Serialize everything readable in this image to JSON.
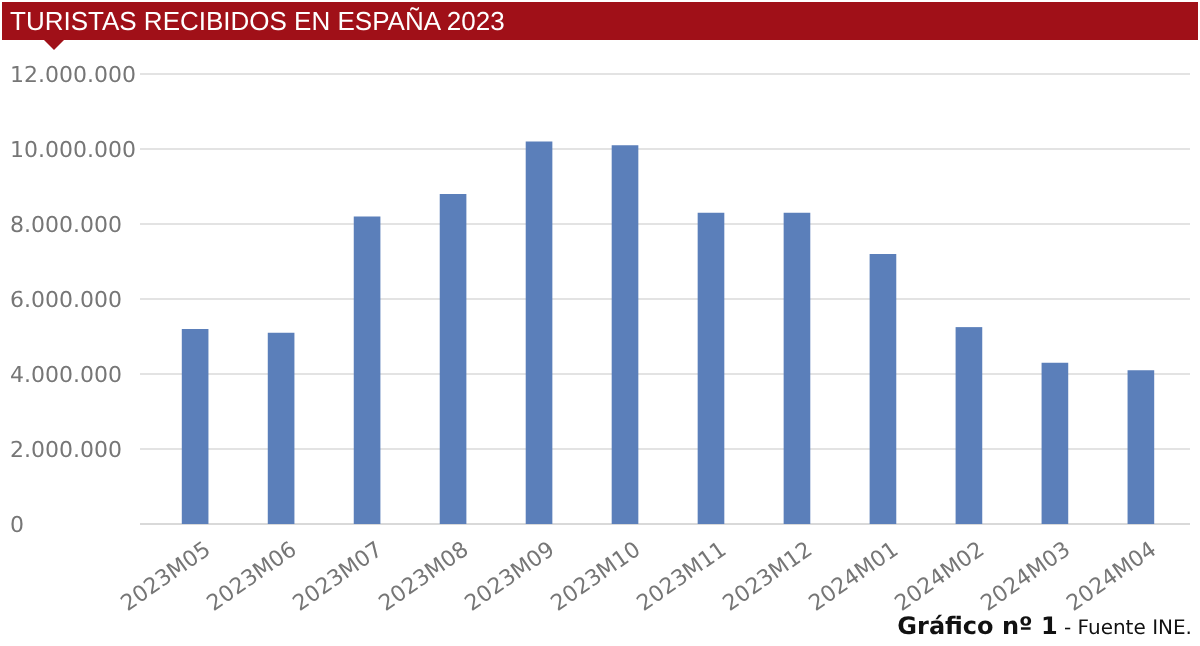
{
  "chart_data": {
    "type": "bar",
    "title": "TURISTAS RECIBIDOS EN ESPAÑA 2023",
    "categories": [
      "2023M05",
      "2023M06",
      "2023M07",
      "2023M08",
      "2023M09",
      "2023M10",
      "2023M11",
      "2023M12",
      "2024M01",
      "2024M02",
      "2024M03",
      "2024M04"
    ],
    "values": [
      5200000,
      5100000,
      8200000,
      8800000,
      10200000,
      10100000,
      8300000,
      8300000,
      7200000,
      5250000,
      4300000,
      4100000
    ],
    "color": "#5b7fba",
    "ylim": [
      0,
      12000000
    ],
    "yticks": [
      {
        "value": 0,
        "label": "0"
      },
      {
        "value": 2000000,
        "label": "2.000.000"
      },
      {
        "value": 4000000,
        "label": "4.000.000"
      },
      {
        "value": 6000000,
        "label": "6.000.000"
      },
      {
        "value": 8000000,
        "label": "8.000.000"
      },
      {
        "value": 10000000,
        "label": "10.000.000"
      },
      {
        "value": 12000000,
        "label": "12.000.000"
      }
    ],
    "grid": "y",
    "annotations": [
      "Gráfico nº 1",
      "- Fuente INE."
    ]
  }
}
